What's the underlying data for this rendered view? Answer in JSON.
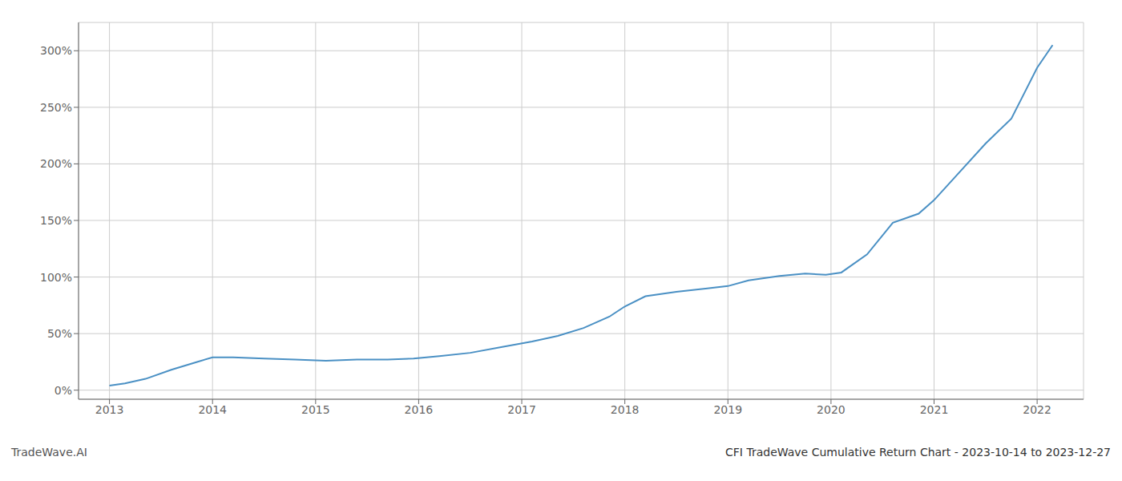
{
  "chart_data": {
    "type": "line",
    "title": "CFI TradeWave Cumulative Return Chart - 2023-10-14 to 2023-12-27",
    "annotations": [
      "TradeWave.AI"
    ],
    "color": "#4a90c4",
    "grid": true,
    "x": [
      2013.0,
      2013.15,
      2013.35,
      2013.6,
      2013.85,
      2014.0,
      2014.2,
      2014.5,
      2014.8,
      2015.1,
      2015.4,
      2015.7,
      2015.95,
      2016.2,
      2016.5,
      2016.8,
      2017.1,
      2017.35,
      2017.6,
      2017.85,
      2018.0,
      2018.2,
      2018.5,
      2018.8,
      2019.0,
      2019.2,
      2019.5,
      2019.75,
      2019.95,
      2020.1,
      2020.35,
      2020.6,
      2020.85,
      2021.0,
      2021.2,
      2021.5,
      2021.75,
      2022.0,
      2022.15
    ],
    "values": [
      4,
      6,
      10,
      18,
      25,
      29,
      29,
      28,
      27,
      26,
      27,
      27,
      28,
      30,
      33,
      38,
      43,
      48,
      55,
      65,
      74,
      83,
      87,
      90,
      92,
      97,
      101,
      103,
      102,
      104,
      120,
      148,
      156,
      168,
      188,
      218,
      240,
      285,
      305
    ],
    "xlim": [
      2012.7,
      2022.45
    ],
    "xticks": [
      2013,
      2014,
      2015,
      2016,
      2017,
      2018,
      2019,
      2020,
      2021,
      2022
    ],
    "ylim": [
      -8,
      325
    ],
    "yticks": [
      {
        "value": 0,
        "label": "0%"
      },
      {
        "value": 50,
        "label": "50%"
      },
      {
        "value": 100,
        "label": "100%"
      },
      {
        "value": 150,
        "label": "150%"
      },
      {
        "value": 200,
        "label": "200%"
      },
      {
        "value": 250,
        "label": "250%"
      },
      {
        "value": 300,
        "label": "300%"
      }
    ]
  }
}
